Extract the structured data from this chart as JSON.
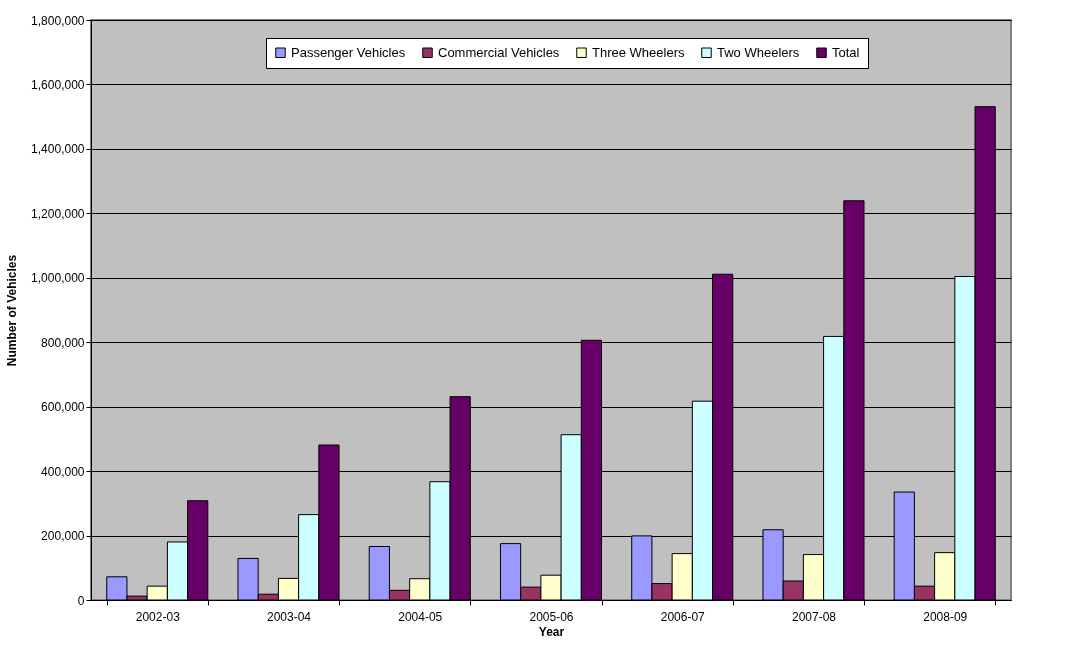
{
  "chart_data": {
    "type": "bar",
    "xlabel": "Year",
    "ylabel": "Number of Vehicles",
    "categories": [
      "2002-03",
      "2003-04",
      "2004-05",
      "2005-06",
      "2006-07",
      "2007-08",
      "2008-09"
    ],
    "series": [
      {
        "name": "Passenger Vehicles",
        "color": "#9999ff",
        "values": [
          72000,
          129000,
          166000,
          175000,
          199000,
          218000,
          335000
        ]
      },
      {
        "name": "Commercial Vehicles",
        "color": "#993366",
        "values": [
          12000,
          18000,
          30000,
          40000,
          51000,
          59000,
          43000
        ]
      },
      {
        "name": "Three Wheelers",
        "color": "#ffffcc",
        "values": [
          43000,
          67000,
          66000,
          77000,
          144000,
          141000,
          147000
        ]
      },
      {
        "name": "Two Wheelers",
        "color": "#ccffff",
        "values": [
          180000,
          265000,
          367000,
          513000,
          617000,
          818000,
          1004000
        ]
      },
      {
        "name": "Total",
        "color": "#660066",
        "values": [
          308000,
          481000,
          631000,
          806000,
          1011000,
          1239000,
          1531000
        ]
      }
    ],
    "ylim": [
      0,
      1800000
    ],
    "yticks": [
      0,
      {
        "value": 200000,
        "label": "200,000"
      },
      {
        "value": 400000,
        "label": "400,000"
      },
      {
        "value": 600000,
        "label": "600,000"
      },
      {
        "value": 800000,
        "label": "800,000"
      },
      {
        "value": 1000000,
        "label": "1,000,000"
      },
      {
        "value": 1200000,
        "label": "1,200,000"
      },
      {
        "value": 1400000,
        "label": "1,400,000"
      },
      {
        "value": 1600000,
        "label": "1,600,000"
      },
      {
        "value": 1800000,
        "label": "1,800,000"
      }
    ],
    "grid": "y",
    "legend": "top"
  }
}
